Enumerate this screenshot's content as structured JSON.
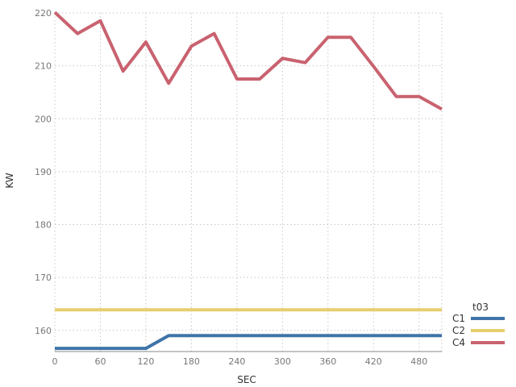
{
  "chart_data": {
    "type": "line",
    "xlabel": "SEC",
    "ylabel": "KW",
    "xlim": [
      0,
      510
    ],
    "ylim": [
      156,
      220
    ],
    "xticks": [
      0,
      60,
      120,
      180,
      240,
      300,
      360,
      420,
      480
    ],
    "yticks": [
      160,
      170,
      180,
      190,
      200,
      210,
      220
    ],
    "grid": true,
    "legend": {
      "title": "t03",
      "position": "right"
    },
    "series": [
      {
        "name": "C1",
        "color": "#3f74a8",
        "x": [
          0,
          30,
          60,
          90,
          120,
          150,
          180,
          210,
          240,
          270,
          300,
          330,
          360,
          390,
          420,
          450,
          480,
          510
        ],
        "y": [
          156.6,
          156.6,
          156.6,
          156.6,
          156.6,
          159,
          159,
          159,
          159,
          159,
          159,
          159,
          159,
          159,
          159,
          159,
          159,
          159
        ]
      },
      {
        "name": "C2",
        "color": "#e6cf6d",
        "x": [
          0,
          30,
          60,
          90,
          120,
          150,
          180,
          210,
          240,
          270,
          300,
          330,
          360,
          390,
          420,
          450,
          480,
          510
        ],
        "y": [
          163.9,
          163.9,
          163.9,
          163.9,
          163.9,
          163.9,
          163.9,
          163.9,
          163.9,
          163.9,
          163.9,
          163.9,
          163.9,
          163.9,
          163.9,
          163.9,
          163.9,
          163.9
        ]
      },
      {
        "name": "C4",
        "color": "#c9626f",
        "x": [
          0,
          30,
          60,
          90,
          120,
          150,
          180,
          210,
          240,
          270,
          300,
          330,
          360,
          390,
          420,
          450,
          480,
          510
        ],
        "y": [
          220.1,
          216.1,
          218.5,
          209.0,
          214.5,
          206.7,
          213.7,
          216.1,
          207.5,
          207.5,
          211.4,
          210.6,
          215.4,
          215.4,
          209.9,
          204.2,
          204.2,
          201.8
        ]
      }
    ]
  }
}
